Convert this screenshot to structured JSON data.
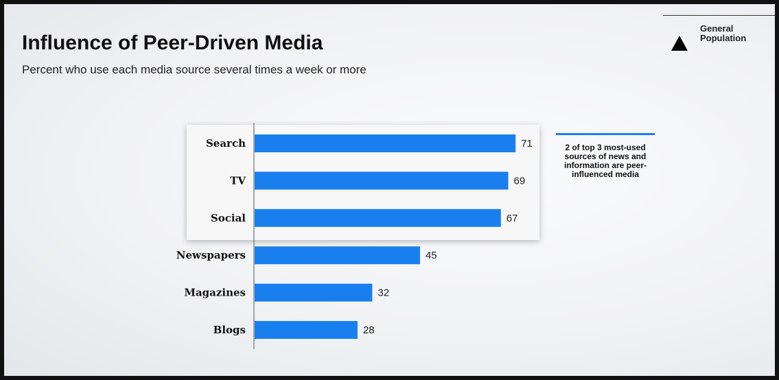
{
  "colors": {
    "bar": "#1a7fee",
    "axis": "#555555",
    "text": "#111111"
  },
  "legend": {
    "icon": "triangle-up-icon",
    "label": "General Population"
  },
  "callout": {
    "text": "2 of top 3 most-used sources of news and information are peer-influenced media"
  },
  "chart_data": {
    "type": "bar",
    "orientation": "horizontal",
    "title": "Influence of Peer-Driven Media",
    "subtitle": "Percent who use each media source several times a week or more",
    "categories": [
      "Search",
      "TV",
      "Social",
      "Newspapers",
      "Magazines",
      "Blogs"
    ],
    "series": [
      {
        "name": "General Population",
        "values": [
          71,
          69,
          67,
          45,
          32,
          28
        ]
      }
    ],
    "xlim": [
      0,
      100
    ],
    "grid": false,
    "legend_position": "top-right",
    "highlighted_categories": [
      "Search",
      "TV",
      "Social"
    ]
  }
}
